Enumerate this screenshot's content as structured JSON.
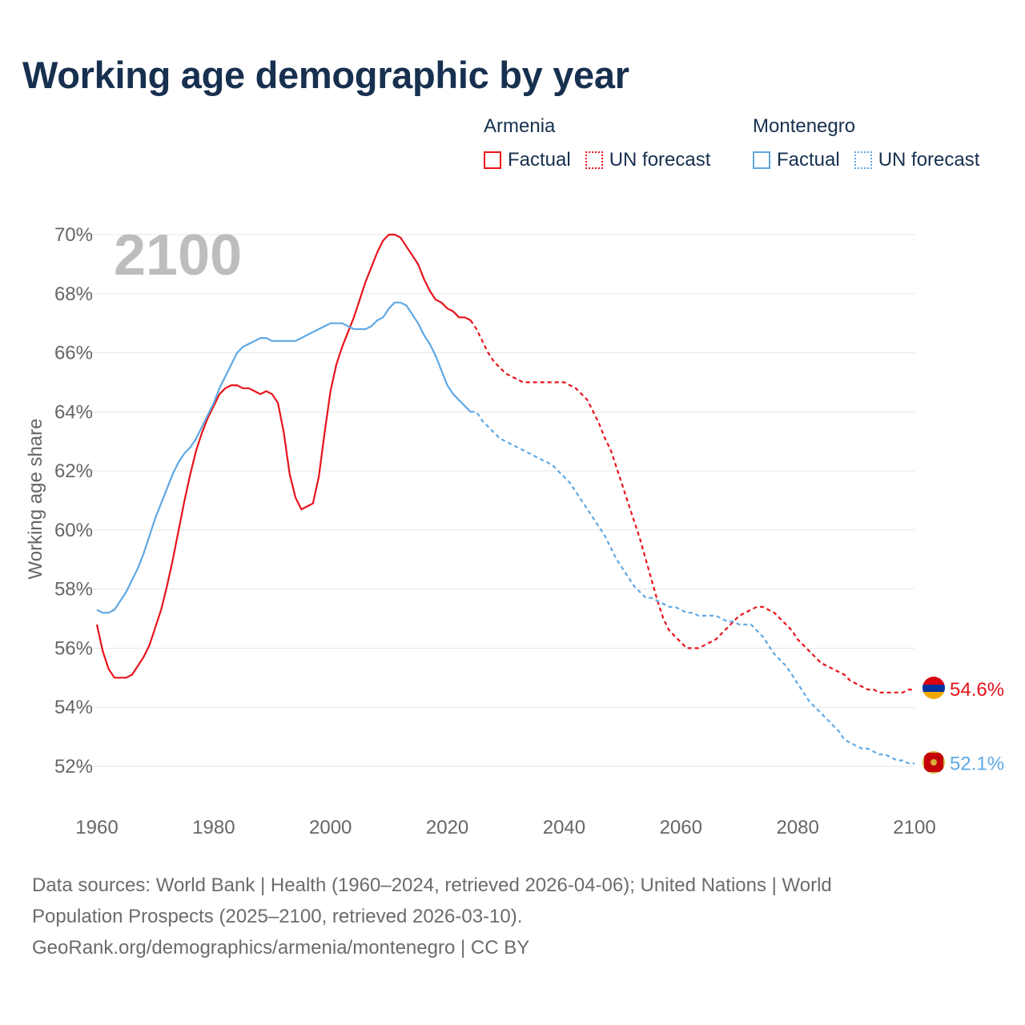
{
  "title": "Working age demographic by year",
  "year_watermark": "2100",
  "legend": {
    "groups": [
      {
        "name": "Armenia",
        "factual_label": "Factual",
        "forecast_label": "UN forecast",
        "color": "#e8131b"
      },
      {
        "name": "Montenegro",
        "factual_label": "Factual",
        "forecast_label": "UN forecast",
        "color": "#5fa8e4"
      }
    ]
  },
  "footer": {
    "line1": "Data sources: World Bank | Health (1960–2024, retrieved 2026-04-06); United Nations | World",
    "line2": "Population Prospects (2025–2100, retrieved 2026-03-10).",
    "line3": "GeoRank.org/demographics/armenia/montenegro | CC BY"
  },
  "chart_data": {
    "type": "line",
    "title": "Working age demographic by year",
    "xlabel": "",
    "ylabel": "Working age share",
    "xlim": [
      1960,
      2100
    ],
    "ylim": [
      51,
      71
    ],
    "x_ticks": [
      1960,
      1980,
      2000,
      2020,
      2040,
      2060,
      2080,
      2100
    ],
    "y_ticks": [
      52,
      54,
      56,
      58,
      60,
      62,
      64,
      66,
      68,
      70
    ],
    "y_tick_labels": [
      "52%",
      "54%",
      "56%",
      "58%",
      "60%",
      "62%",
      "64%",
      "66%",
      "68%",
      "70%"
    ],
    "grid": true,
    "factual_end_year": 2024,
    "series": [
      {
        "name": "Armenia",
        "color": "#e8131b",
        "end_label": "54.6%",
        "points": [
          [
            1960,
            56.8
          ],
          [
            1961,
            55.9
          ],
          [
            1962,
            55.3
          ],
          [
            1963,
            55.0
          ],
          [
            1964,
            55.0
          ],
          [
            1965,
            55.0
          ],
          [
            1966,
            55.1
          ],
          [
            1967,
            55.4
          ],
          [
            1968,
            55.7
          ],
          [
            1969,
            56.1
          ],
          [
            1970,
            56.7
          ],
          [
            1971,
            57.3
          ],
          [
            1972,
            58.1
          ],
          [
            1973,
            59.0
          ],
          [
            1974,
            60.0
          ],
          [
            1975,
            61.0
          ],
          [
            1976,
            61.9
          ],
          [
            1977,
            62.7
          ],
          [
            1978,
            63.3
          ],
          [
            1979,
            63.8
          ],
          [
            1980,
            64.2
          ],
          [
            1981,
            64.6
          ],
          [
            1982,
            64.8
          ],
          [
            1983,
            64.9
          ],
          [
            1984,
            64.9
          ],
          [
            1985,
            64.8
          ],
          [
            1986,
            64.8
          ],
          [
            1987,
            64.7
          ],
          [
            1988,
            64.6
          ],
          [
            1989,
            64.7
          ],
          [
            1990,
            64.6
          ],
          [
            1991,
            64.3
          ],
          [
            1992,
            63.3
          ],
          [
            1993,
            61.9
          ],
          [
            1994,
            61.1
          ],
          [
            1995,
            60.7
          ],
          [
            1996,
            60.8
          ],
          [
            1997,
            60.9
          ],
          [
            1998,
            61.8
          ],
          [
            1999,
            63.3
          ],
          [
            2000,
            64.7
          ],
          [
            2001,
            65.6
          ],
          [
            2002,
            66.2
          ],
          [
            2003,
            66.7
          ],
          [
            2004,
            67.2
          ],
          [
            2005,
            67.8
          ],
          [
            2006,
            68.4
          ],
          [
            2007,
            68.9
          ],
          [
            2008,
            69.4
          ],
          [
            2009,
            69.8
          ],
          [
            2010,
            70.0
          ],
          [
            2011,
            70.0
          ],
          [
            2012,
            69.9
          ],
          [
            2013,
            69.6
          ],
          [
            2014,
            69.3
          ],
          [
            2015,
            69.0
          ],
          [
            2016,
            68.5
          ],
          [
            2017,
            68.1
          ],
          [
            2018,
            67.8
          ],
          [
            2019,
            67.7
          ],
          [
            2020,
            67.5
          ],
          [
            2021,
            67.4
          ],
          [
            2022,
            67.2
          ],
          [
            2023,
            67.2
          ],
          [
            2024,
            67.1
          ],
          [
            2025,
            66.8
          ],
          [
            2026,
            66.4
          ],
          [
            2027,
            66.0
          ],
          [
            2028,
            65.7
          ],
          [
            2029,
            65.5
          ],
          [
            2030,
            65.3
          ],
          [
            2031,
            65.2
          ],
          [
            2032,
            65.1
          ],
          [
            2033,
            65.0
          ],
          [
            2034,
            65.0
          ],
          [
            2035,
            65.0
          ],
          [
            2036,
            65.0
          ],
          [
            2037,
            65.0
          ],
          [
            2038,
            65.0
          ],
          [
            2039,
            65.0
          ],
          [
            2040,
            65.0
          ],
          [
            2041,
            64.9
          ],
          [
            2042,
            64.8
          ],
          [
            2043,
            64.6
          ],
          [
            2044,
            64.4
          ],
          [
            2045,
            64.0
          ],
          [
            2046,
            63.6
          ],
          [
            2047,
            63.1
          ],
          [
            2048,
            62.7
          ],
          [
            2049,
            62.1
          ],
          [
            2050,
            61.5
          ],
          [
            2051,
            60.9
          ],
          [
            2052,
            60.3
          ],
          [
            2053,
            59.7
          ],
          [
            2054,
            59.0
          ],
          [
            2055,
            58.3
          ],
          [
            2056,
            57.6
          ],
          [
            2057,
            57.0
          ],
          [
            2058,
            56.6
          ],
          [
            2059,
            56.4
          ],
          [
            2060,
            56.2
          ],
          [
            2061,
            56.0
          ],
          [
            2062,
            56.0
          ],
          [
            2063,
            56.0
          ],
          [
            2064,
            56.1
          ],
          [
            2065,
            56.2
          ],
          [
            2066,
            56.3
          ],
          [
            2067,
            56.5
          ],
          [
            2068,
            56.7
          ],
          [
            2069,
            56.9
          ],
          [
            2070,
            57.1
          ],
          [
            2071,
            57.2
          ],
          [
            2072,
            57.3
          ],
          [
            2073,
            57.4
          ],
          [
            2074,
            57.4
          ],
          [
            2075,
            57.3
          ],
          [
            2076,
            57.2
          ],
          [
            2077,
            57.0
          ],
          [
            2078,
            56.8
          ],
          [
            2079,
            56.6
          ],
          [
            2080,
            56.3
          ],
          [
            2081,
            56.1
          ],
          [
            2082,
            55.9
          ],
          [
            2083,
            55.7
          ],
          [
            2084,
            55.5
          ],
          [
            2085,
            55.4
          ],
          [
            2086,
            55.3
          ],
          [
            2087,
            55.2
          ],
          [
            2088,
            55.1
          ],
          [
            2089,
            54.9
          ],
          [
            2090,
            54.8
          ],
          [
            2091,
            54.7
          ],
          [
            2092,
            54.6
          ],
          [
            2093,
            54.6
          ],
          [
            2094,
            54.5
          ],
          [
            2095,
            54.5
          ],
          [
            2096,
            54.5
          ],
          [
            2097,
            54.5
          ],
          [
            2098,
            54.5
          ],
          [
            2099,
            54.6
          ],
          [
            2100,
            54.6
          ]
        ]
      },
      {
        "name": "Montenegro",
        "color": "#5fa8e4",
        "end_label": "52.1%",
        "points": [
          [
            1960,
            57.3
          ],
          [
            1961,
            57.2
          ],
          [
            1962,
            57.2
          ],
          [
            1963,
            57.3
          ],
          [
            1964,
            57.6
          ],
          [
            1965,
            57.9
          ],
          [
            1966,
            58.3
          ],
          [
            1967,
            58.7
          ],
          [
            1968,
            59.2
          ],
          [
            1969,
            59.8
          ],
          [
            1970,
            60.4
          ],
          [
            1971,
            60.9
          ],
          [
            1972,
            61.4
          ],
          [
            1973,
            61.9
          ],
          [
            1974,
            62.3
          ],
          [
            1975,
            62.6
          ],
          [
            1976,
            62.8
          ],
          [
            1977,
            63.1
          ],
          [
            1978,
            63.5
          ],
          [
            1979,
            63.9
          ],
          [
            1980,
            64.3
          ],
          [
            1981,
            64.8
          ],
          [
            1982,
            65.2
          ],
          [
            1983,
            65.6
          ],
          [
            1984,
            66.0
          ],
          [
            1985,
            66.2
          ],
          [
            1986,
            66.3
          ],
          [
            1987,
            66.4
          ],
          [
            1988,
            66.5
          ],
          [
            1989,
            66.5
          ],
          [
            1990,
            66.4
          ],
          [
            1991,
            66.4
          ],
          [
            1992,
            66.4
          ],
          [
            1993,
            66.4
          ],
          [
            1994,
            66.4
          ],
          [
            1995,
            66.5
          ],
          [
            1996,
            66.6
          ],
          [
            1997,
            66.7
          ],
          [
            1998,
            66.8
          ],
          [
            1999,
            66.9
          ],
          [
            2000,
            67.0
          ],
          [
            2001,
            67.0
          ],
          [
            2002,
            67.0
          ],
          [
            2003,
            66.9
          ],
          [
            2004,
            66.8
          ],
          [
            2005,
            66.8
          ],
          [
            2006,
            66.8
          ],
          [
            2007,
            66.9
          ],
          [
            2008,
            67.1
          ],
          [
            2009,
            67.2
          ],
          [
            2010,
            67.5
          ],
          [
            2011,
            67.7
          ],
          [
            2012,
            67.7
          ],
          [
            2013,
            67.6
          ],
          [
            2014,
            67.3
          ],
          [
            2015,
            67.0
          ],
          [
            2016,
            66.6
          ],
          [
            2017,
            66.3
          ],
          [
            2018,
            65.9
          ],
          [
            2019,
            65.4
          ],
          [
            2020,
            64.9
          ],
          [
            2021,
            64.6
          ],
          [
            2022,
            64.4
          ],
          [
            2023,
            64.2
          ],
          [
            2024,
            64.0
          ],
          [
            2025,
            64.0
          ],
          [
            2026,
            63.7
          ],
          [
            2027,
            63.5
          ],
          [
            2028,
            63.3
          ],
          [
            2029,
            63.1
          ],
          [
            2030,
            63.0
          ],
          [
            2031,
            62.9
          ],
          [
            2032,
            62.8
          ],
          [
            2033,
            62.7
          ],
          [
            2034,
            62.6
          ],
          [
            2035,
            62.5
          ],
          [
            2036,
            62.4
          ],
          [
            2037,
            62.3
          ],
          [
            2038,
            62.2
          ],
          [
            2039,
            62.0
          ],
          [
            2040,
            61.8
          ],
          [
            2041,
            61.6
          ],
          [
            2042,
            61.3
          ],
          [
            2043,
            61.0
          ],
          [
            2044,
            60.7
          ],
          [
            2045,
            60.4
          ],
          [
            2046,
            60.1
          ],
          [
            2047,
            59.8
          ],
          [
            2048,
            59.4
          ],
          [
            2049,
            59.0
          ],
          [
            2050,
            58.7
          ],
          [
            2051,
            58.4
          ],
          [
            2052,
            58.1
          ],
          [
            2053,
            57.9
          ],
          [
            2054,
            57.7
          ],
          [
            2055,
            57.7
          ],
          [
            2056,
            57.6
          ],
          [
            2057,
            57.5
          ],
          [
            2058,
            57.4
          ],
          [
            2059,
            57.4
          ],
          [
            2060,
            57.3
          ],
          [
            2061,
            57.2
          ],
          [
            2062,
            57.2
          ],
          [
            2063,
            57.1
          ],
          [
            2064,
            57.1
          ],
          [
            2065,
            57.1
          ],
          [
            2066,
            57.1
          ],
          [
            2067,
            57.0
          ],
          [
            2068,
            56.9
          ],
          [
            2069,
            56.9
          ],
          [
            2070,
            56.8
          ],
          [
            2071,
            56.8
          ],
          [
            2072,
            56.8
          ],
          [
            2073,
            56.6
          ],
          [
            2074,
            56.4
          ],
          [
            2075,
            56.1
          ],
          [
            2076,
            55.8
          ],
          [
            2077,
            55.6
          ],
          [
            2078,
            55.4
          ],
          [
            2079,
            55.1
          ],
          [
            2080,
            54.8
          ],
          [
            2081,
            54.5
          ],
          [
            2082,
            54.2
          ],
          [
            2083,
            54.0
          ],
          [
            2084,
            53.8
          ],
          [
            2085,
            53.6
          ],
          [
            2086,
            53.4
          ],
          [
            2087,
            53.2
          ],
          [
            2088,
            52.9
          ],
          [
            2089,
            52.8
          ],
          [
            2090,
            52.7
          ],
          [
            2091,
            52.6
          ],
          [
            2092,
            52.6
          ],
          [
            2093,
            52.5
          ],
          [
            2094,
            52.4
          ],
          [
            2095,
            52.4
          ],
          [
            2096,
            52.3
          ],
          [
            2097,
            52.2
          ],
          [
            2098,
            52.2
          ],
          [
            2099,
            52.1
          ],
          [
            2100,
            52.1
          ]
        ]
      }
    ]
  }
}
